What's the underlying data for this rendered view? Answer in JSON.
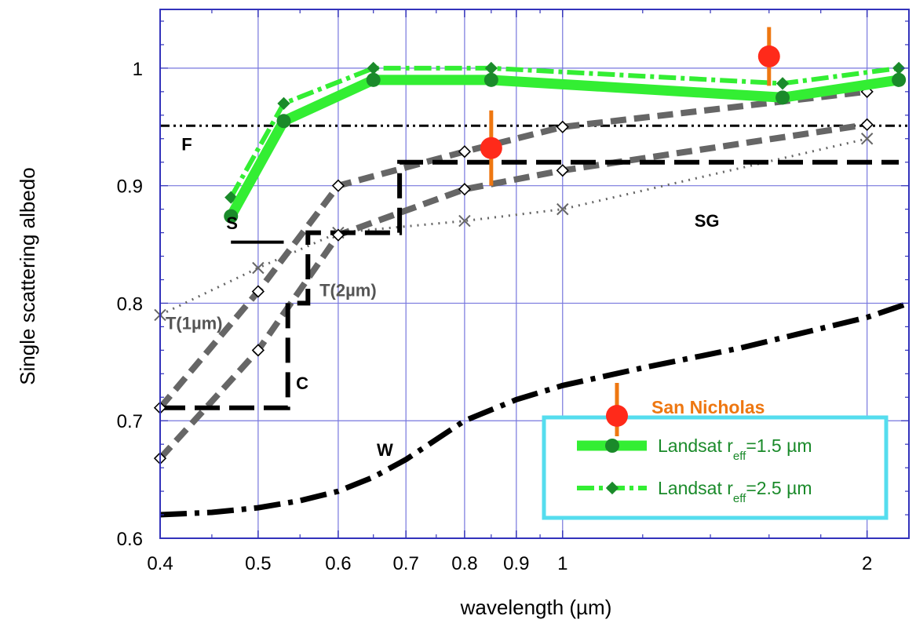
{
  "chart_data": {
    "type": "line",
    "xlabel": "wavelength (µm)",
    "ylabel": "Single scattering albedo",
    "x_scale": "log",
    "xlim": [
      0.4,
      2.2
    ],
    "ylim": [
      0.6,
      1.05
    ],
    "x_ticks": [
      0.4,
      0.5,
      0.6,
      0.7,
      0.8,
      0.9,
      1,
      2
    ],
    "x_tick_labels": [
      "0.4",
      "0.5",
      "0.6",
      "0.7",
      "0.8",
      "0.9",
      "1",
      "2"
    ],
    "y_ticks": [
      0.6,
      0.7,
      0.8,
      0.9,
      1.0
    ],
    "y_tick_labels": [
      "0.6",
      "0.7",
      "0.8",
      "0.9",
      "1"
    ],
    "grid": true,
    "legend_placement": "bottom-right",
    "colors": {
      "grid": "#7777dd",
      "axis": "#3333bb",
      "landsat": "#33ee33",
      "landsat_marker": "#1a8a2a",
      "san_nicholas": "#ff2a1a",
      "san_nicholas_err": "#ee7711",
      "legend_text": "#1a8a2a",
      "legend_box": "#55ddee",
      "model_gray": "#666666",
      "model_black": "#000000",
      "legend_sn_text": "#ee7711"
    },
    "series": [
      {
        "name": "San Nicholas",
        "style": "point-err",
        "x": [
          0.85,
          1.6
        ],
        "y": [
          0.932,
          1.01
        ],
        "err": [
          0.032,
          0.025
        ]
      },
      {
        "name": "Landsat r_eff=1.5 µm",
        "style": "landsat15",
        "x": [
          0.47,
          0.53,
          0.65,
          0.85,
          1.65,
          2.15
        ],
        "y": [
          0.874,
          0.955,
          0.99,
          0.99,
          0.975,
          0.99
        ]
      },
      {
        "name": "Landsat r_eff=2.5 µm",
        "style": "landsat25",
        "x": [
          0.47,
          0.53,
          0.65,
          0.85,
          1.65,
          2.15
        ],
        "y": [
          0.89,
          0.97,
          1.0,
          1.0,
          0.987,
          1.0
        ]
      },
      {
        "style": "F",
        "x": [
          0.4,
          2.2
        ],
        "y": [
          0.951,
          0.951
        ]
      },
      {
        "style": "S",
        "x": [
          0.47,
          0.53
        ],
        "y": [
          0.852,
          0.852
        ]
      },
      {
        "style": "C",
        "x": [
          0.4,
          0.535,
          0.535,
          0.56,
          0.56,
          0.69,
          0.69,
          2.15
        ],
        "y": [
          0.711,
          0.711,
          0.8,
          0.8,
          0.86,
          0.86,
          0.92,
          0.92
        ]
      },
      {
        "style": "T1",
        "x": [
          0.4,
          0.5,
          0.6,
          0.8,
          1.0,
          2.0
        ],
        "y": [
          0.711,
          0.81,
          0.9,
          0.929,
          0.95,
          0.98
        ]
      },
      {
        "style": "T2",
        "x": [
          0.4,
          0.5,
          0.6,
          0.8,
          1.0,
          2.0
        ],
        "y": [
          0.668,
          0.76,
          0.858,
          0.897,
          0.913,
          0.952
        ]
      },
      {
        "style": "SG",
        "x": [
          0.4,
          0.5,
          0.6,
          0.8,
          1.0,
          2.0
        ],
        "y": [
          0.79,
          0.83,
          0.86,
          0.87,
          0.88,
          0.94
        ]
      },
      {
        "style": "W",
        "x": [
          0.4,
          0.45,
          0.5,
          0.55,
          0.6,
          0.65,
          0.7,
          0.8,
          0.9,
          1.0,
          1.2,
          1.5,
          2.0,
          2.2
        ],
        "y": [
          0.62,
          0.622,
          0.626,
          0.632,
          0.64,
          0.652,
          0.667,
          0.7,
          0.718,
          0.73,
          0.745,
          0.762,
          0.788,
          0.8
        ]
      }
    ],
    "annotations": [
      {
        "text": "F",
        "x": 0.42,
        "y": 0.93,
        "color": "#000000"
      },
      {
        "text": "S",
        "x": 0.465,
        "y": 0.863,
        "color": "#000000"
      },
      {
        "text": "SG",
        "x": 1.35,
        "y": 0.865,
        "color": "#000000"
      },
      {
        "text": "T(2µm)",
        "x": 0.575,
        "y": 0.806,
        "color": "#555555"
      },
      {
        "text": "T(1µm)",
        "x": 0.405,
        "y": 0.778,
        "color": "#555555"
      },
      {
        "text": "C",
        "x": 0.545,
        "y": 0.727,
        "color": "#000000"
      },
      {
        "text": "W",
        "x": 0.655,
        "y": 0.67,
        "color": "#000000"
      }
    ],
    "legend": {
      "entries": [
        {
          "series": 0,
          "label": "San Nicholas"
        },
        {
          "series": 1,
          "label_main": "Landsat r",
          "label_sub": "eff",
          "label_rest": "=1.5 µm"
        },
        {
          "series": 2,
          "label_main": "Landsat r",
          "label_sub": "eff",
          "label_rest": "=2.5 µm"
        }
      ]
    }
  }
}
